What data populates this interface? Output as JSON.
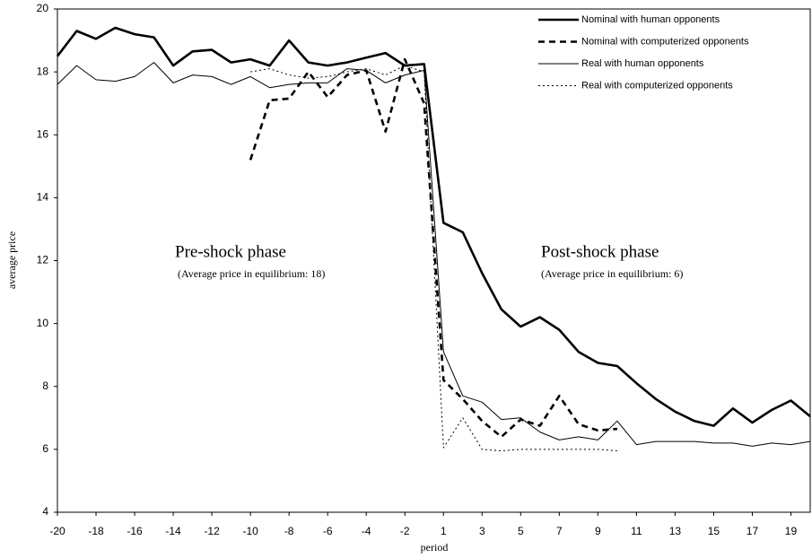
{
  "chart_data": {
    "type": "line",
    "x_label": "period",
    "y_label": "average price",
    "categories": [
      "-20",
      null,
      "-18",
      null,
      "-16",
      null,
      "-14",
      null,
      "-12",
      null,
      "-10",
      null,
      "-8",
      null,
      "-6",
      null,
      "-4",
      null,
      "-2",
      null,
      "1",
      null,
      "3",
      null,
      "5",
      null,
      "7",
      null,
      "9",
      null,
      "11",
      null,
      "13",
      null,
      "15",
      null,
      "17",
      null,
      "19",
      null
    ],
    "ylim": [
      4,
      20
    ],
    "yticks": [
      4,
      6,
      8,
      10,
      12,
      14,
      16,
      18,
      20
    ],
    "grid": false,
    "legend": "top-right",
    "annotations": [
      "Pre-shock phase",
      "(Average price in equilibrium: 18)",
      "Post-shock phase",
      "(Average price in equilibrium: 6)"
    ],
    "series": [
      {
        "name": "Nominal with human opponents",
        "color": "#000000",
        "dash": "solid",
        "width": 2.6,
        "values": [
          18.5,
          19.3,
          19.05,
          19.4,
          19.2,
          19.1,
          18.2,
          18.65,
          18.7,
          18.3,
          18.4,
          18.2,
          19.0,
          18.3,
          18.2,
          18.3,
          18.45,
          18.6,
          18.2,
          18.25,
          13.2,
          12.9,
          11.6,
          10.45,
          9.9,
          10.2,
          9.8,
          9.1,
          8.75,
          8.65,
          8.1,
          7.6,
          7.2,
          6.9,
          6.75,
          7.3,
          6.85,
          7.25,
          7.55,
          7.05
        ]
      },
      {
        "name": "Nominal with computerized opponents",
        "color": "#000000",
        "dash": "dashed",
        "width": 2.6,
        "values": [
          null,
          null,
          null,
          null,
          null,
          null,
          null,
          null,
          null,
          null,
          15.2,
          17.1,
          17.15,
          18.0,
          17.2,
          17.9,
          18.05,
          16.1,
          18.4,
          17.0,
          8.2,
          7.6,
          6.9,
          6.4,
          6.95,
          6.75,
          7.7,
          6.8,
          6.6,
          6.65,
          null,
          null,
          null,
          null,
          null,
          null,
          null,
          null,
          null,
          null
        ]
      },
      {
        "name": "Real with human opponents",
        "color": "#000000",
        "dash": "solid",
        "width": 1,
        "values": [
          17.6,
          18.2,
          17.75,
          17.7,
          17.85,
          18.3,
          17.65,
          17.9,
          17.85,
          17.6,
          17.85,
          17.5,
          17.6,
          17.65,
          17.65,
          18.1,
          18.05,
          17.65,
          17.9,
          18.05,
          9.1,
          7.7,
          7.5,
          6.95,
          7.0,
          6.55,
          6.3,
          6.4,
          6.3,
          6.9,
          6.15,
          6.25,
          6.25,
          6.25,
          6.2,
          6.2,
          6.1,
          6.2,
          6.15,
          6.25
        ]
      },
      {
        "name": "Real with computerized opponents",
        "color": "#000000",
        "dash": "dotted",
        "width": 1,
        "values": [
          null,
          null,
          null,
          null,
          null,
          null,
          null,
          null,
          null,
          null,
          18.0,
          18.1,
          17.9,
          17.8,
          17.85,
          18.0,
          18.1,
          17.9,
          18.2,
          18.0,
          6.05,
          7.0,
          6.0,
          5.95,
          6.0,
          6.0,
          6.0,
          6.0,
          6.0,
          5.95,
          null,
          null,
          null,
          null,
          null,
          null,
          null,
          null,
          null,
          null
        ]
      }
    ]
  }
}
